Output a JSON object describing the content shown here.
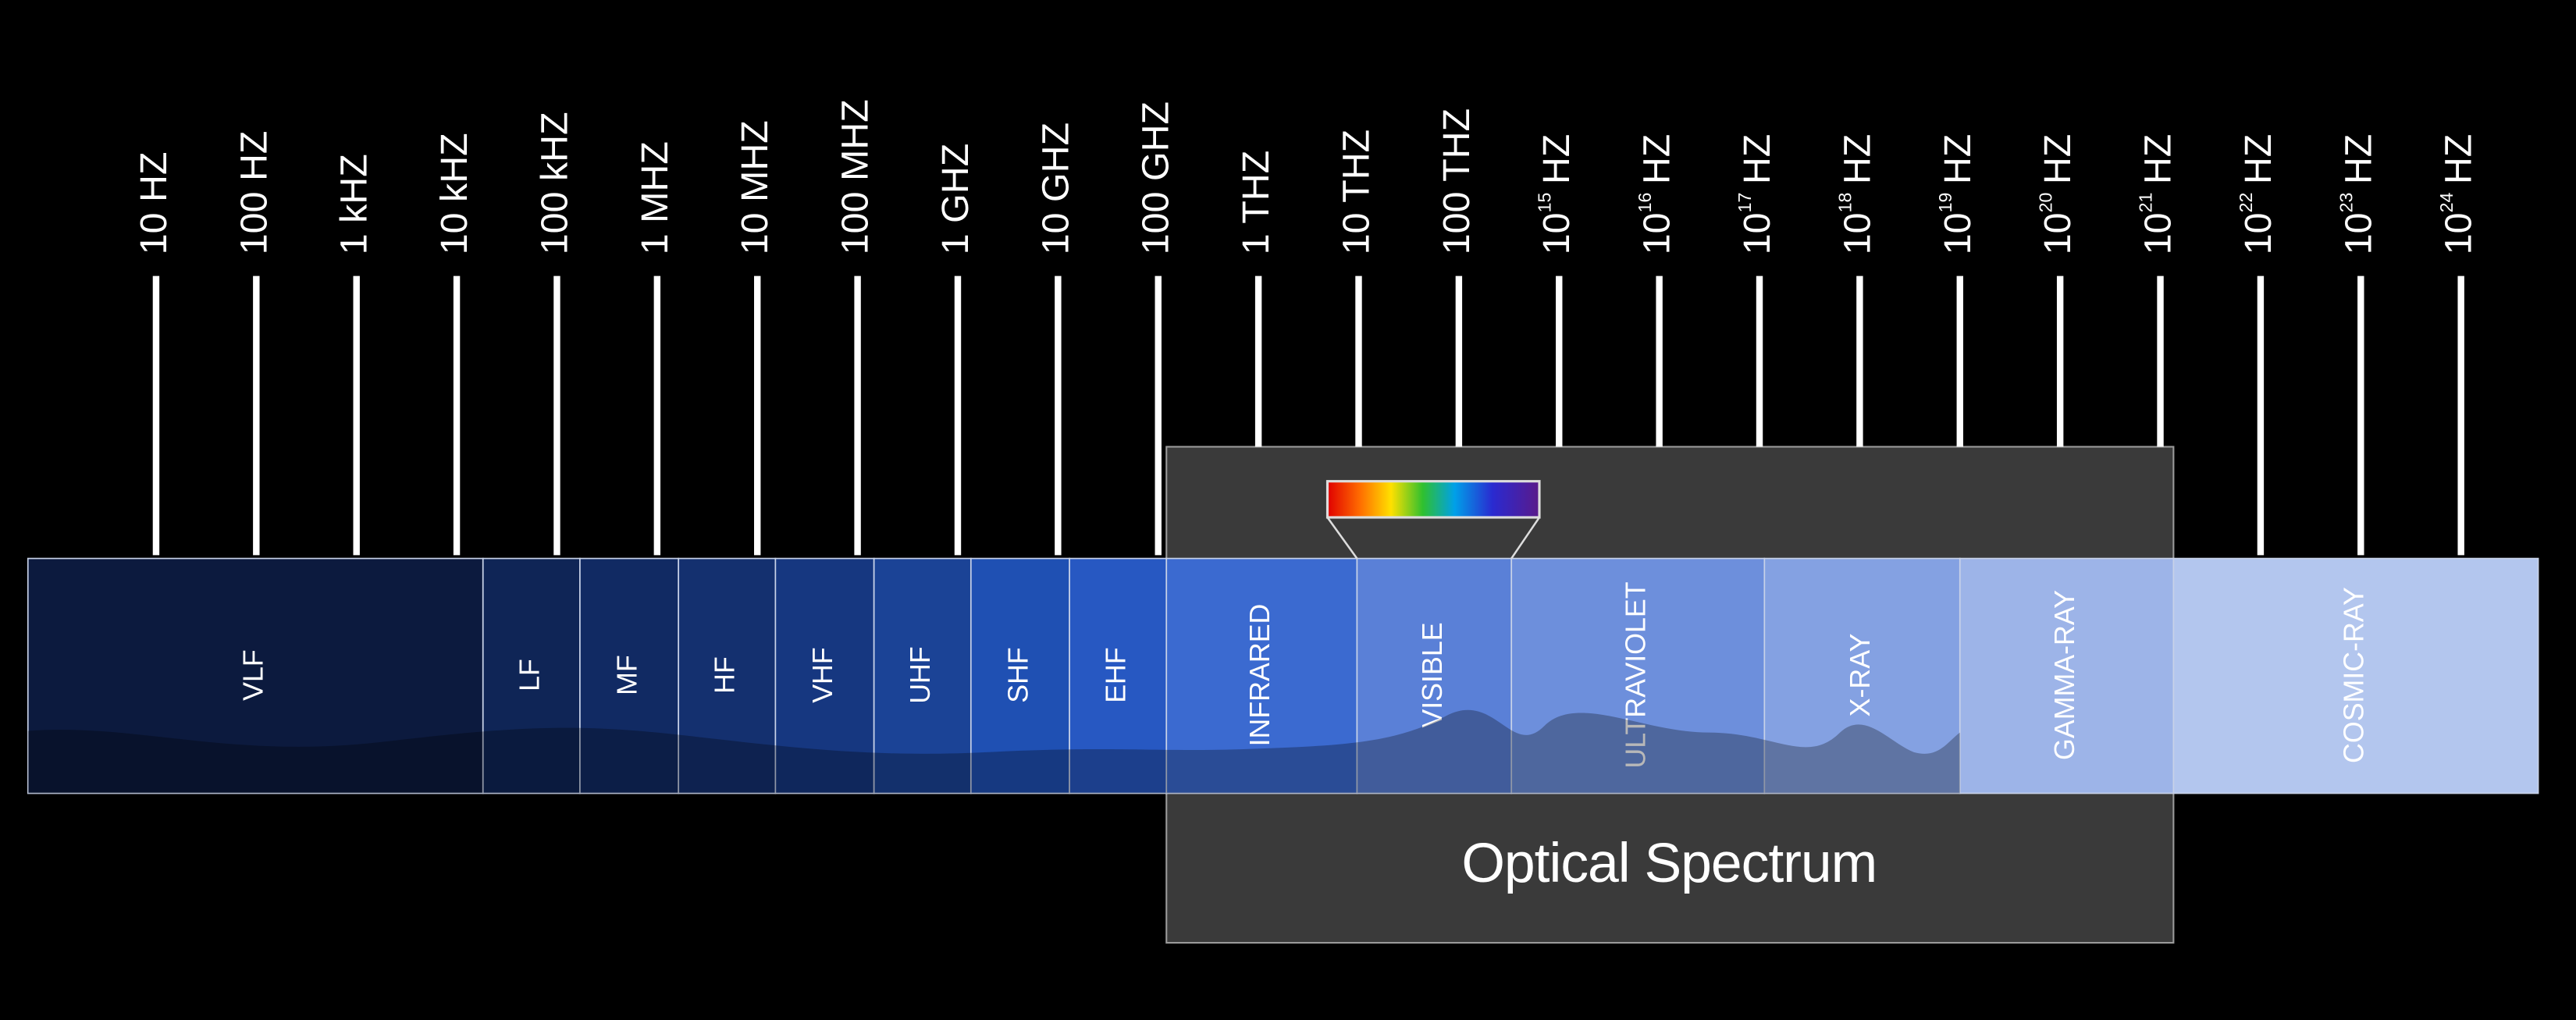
{
  "frequency_ticks": [
    {
      "text": "10 HZ"
    },
    {
      "text": "100 HZ"
    },
    {
      "text": "1 kHZ"
    },
    {
      "text": "10 kHZ"
    },
    {
      "text": "100 kHZ"
    },
    {
      "text": "1 MHZ"
    },
    {
      "text": "10 MHZ"
    },
    {
      "text": "100 MHZ"
    },
    {
      "text": "1 GHZ"
    },
    {
      "text": "10 GHZ"
    },
    {
      "text": "100 GHZ"
    },
    {
      "text": "1 THZ"
    },
    {
      "text": "10 THZ"
    },
    {
      "text": "100 THZ"
    },
    {
      "base": "10",
      "exponent": "15",
      "unit": "HZ"
    },
    {
      "base": "10",
      "exponent": "16",
      "unit": "HZ"
    },
    {
      "base": "10",
      "exponent": "17",
      "unit": "HZ"
    },
    {
      "base": "10",
      "exponent": "18",
      "unit": "HZ"
    },
    {
      "base": "10",
      "exponent": "19",
      "unit": "HZ"
    },
    {
      "base": "10",
      "exponent": "20",
      "unit": "HZ"
    },
    {
      "base": "10",
      "exponent": "21",
      "unit": "HZ"
    },
    {
      "base": "10",
      "exponent": "22",
      "unit": "HZ"
    },
    {
      "base": "10",
      "exponent": "23",
      "unit": "HZ"
    },
    {
      "base": "10",
      "exponent": "24",
      "unit": "HZ"
    }
  ],
  "bands": [
    "VLF",
    "LF",
    "MF",
    "HF",
    "VHF",
    "UHF",
    "SHF",
    "EHF",
    "INFRARED",
    "VISIBLE",
    "ULTRAVIOLET",
    "X-RAY",
    "GAMMA-RAY",
    "COSMIC-RAY"
  ],
  "optical_spectrum": {
    "label": "Optical Spectrum"
  }
}
